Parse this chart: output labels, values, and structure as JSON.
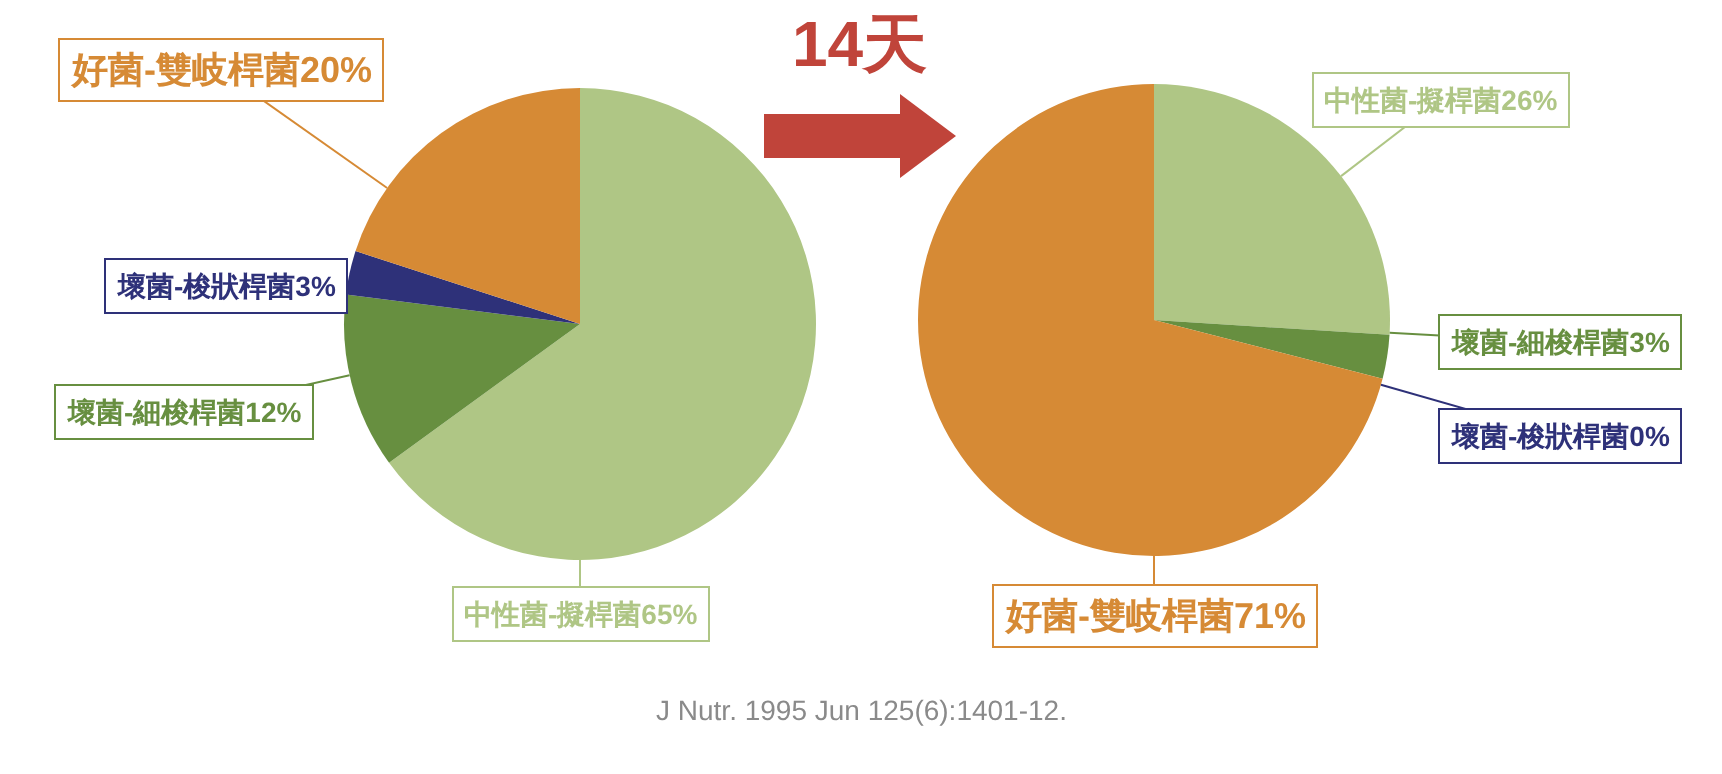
{
  "chart_data": [
    {
      "type": "pie",
      "categories": [
        "中性菌-擬桿菌",
        "壞菌-細梭桿菌",
        "壞菌-梭狀桿菌",
        "好菌-雙岐桿菌"
      ],
      "values": [
        65,
        12,
        3,
        20
      ],
      "value_labels": [
        "65%",
        "12%",
        "3%",
        "20%"
      ],
      "colors": [
        "#afc685",
        "#678f40",
        "#2e3179",
        "#d68a35"
      ]
    },
    {
      "type": "other",
      "title": "14天",
      "annotations": [
        "J Nutr. 1995 Jun 125(6):1401-12."
      ]
    },
    {
      "type": "pie",
      "categories": [
        "中性菌-擬桿菌",
        "壞菌-細梭桿菌",
        "壞菌-梭狀桿菌",
        "好菌-雙岐桿菌"
      ],
      "values": [
        26,
        3,
        0,
        71
      ],
      "value_labels": [
        "26%",
        "3%",
        "0%",
        "71%"
      ],
      "colors": [
        "#afc685",
        "#678f40",
        "#2e3179",
        "#d68a35"
      ]
    }
  ]
}
